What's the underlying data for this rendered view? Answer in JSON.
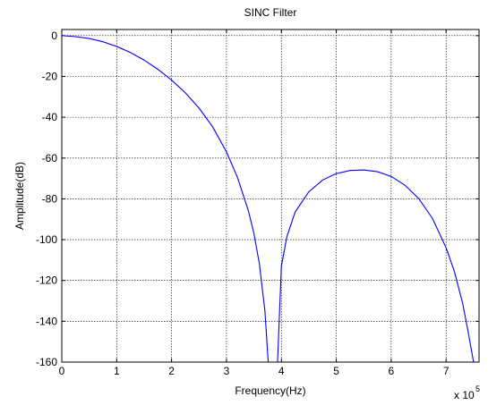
{
  "chart_data": {
    "type": "line",
    "title": "SINC Filter",
    "xlabel": "Frequency(Hz)",
    "ylabel": "Amplitude(dB)",
    "x_multiplier_label": "x 10",
    "x_multiplier_exponent": "5",
    "xlim": [
      0,
      7.6
    ],
    "ylim": [
      -160,
      3
    ],
    "x_ticks": [
      0,
      1,
      2,
      3,
      4,
      5,
      6,
      7
    ],
    "x_tick_labels": [
      "0",
      "1",
      "2",
      "3",
      "4",
      "5",
      "6",
      "7"
    ],
    "y_ticks": [
      0,
      -20,
      -40,
      -60,
      -80,
      -100,
      -120,
      -140,
      -160
    ],
    "y_tick_labels": [
      "0",
      "-20",
      "-40",
      "-60",
      "-80",
      "-100",
      "-120",
      "-140",
      "-160"
    ],
    "grid": true,
    "series": [
      {
        "color": "#0000ff",
        "segments": [
          {
            "x": [
              0,
              0.25,
              0.5,
              0.75,
              1.0,
              1.25,
              1.5,
              1.75,
              2.0,
              2.25,
              2.5,
              2.75,
              3.0,
              3.2,
              3.4,
              3.5,
              3.6,
              3.7,
              3.76
            ],
            "y": [
              0,
              -0.5,
              -1.4,
              -3.0,
              -5.3,
              -8.3,
              -12.0,
              -16.5,
              -21.8,
              -28.0,
              -35.5,
              -44.8,
              -57.0,
              -69.5,
              -86.0,
              -97.0,
              -112.0,
              -135.0,
              -160.0
            ]
          },
          {
            "x": [
              3.93,
              4.0,
              4.1,
              4.25,
              4.5,
              4.75,
              5.0,
              5.25,
              5.5,
              5.75,
              6.0,
              6.25,
              6.5,
              6.75,
              7.0,
              7.15,
              7.3,
              7.4,
              7.5
            ],
            "y": [
              -160.0,
              -113.0,
              -98.5,
              -86.5,
              -76.5,
              -70.8,
              -67.6,
              -66.1,
              -65.8,
              -66.7,
              -69.0,
              -73.3,
              -79.8,
              -89.5,
              -104.0,
              -115.5,
              -131.0,
              -145.0,
              -160.0
            ]
          }
        ]
      }
    ]
  }
}
